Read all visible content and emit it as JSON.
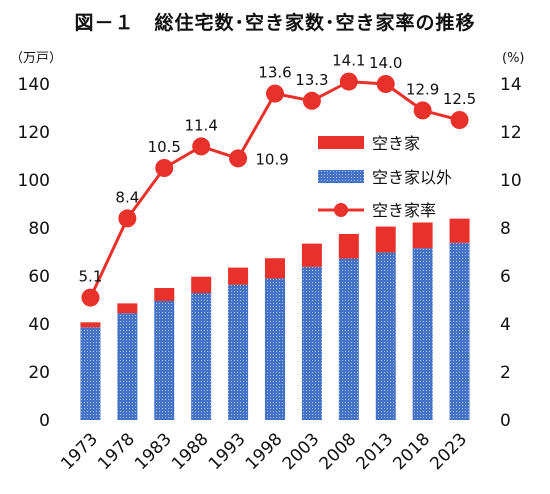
{
  "chart_data": {
    "type": "bar+line",
    "title": "図－１　総住宅数･空き家数･空き家率の推移",
    "left_unit": "（万戸）",
    "right_unit": "(%)",
    "categories": [
      "1973",
      "1978",
      "1983",
      "1988",
      "1993",
      "1998",
      "2003",
      "2008",
      "2013",
      "2018",
      "2023"
    ],
    "left_axis": {
      "min": 0,
      "max": 140,
      "ticks": [
        "0",
        "20",
        "40",
        "60",
        "80",
        "100",
        "120",
        "140"
      ]
    },
    "right_axis": {
      "min": 0,
      "max": 14,
      "ticks": [
        "0",
        "2",
        "4",
        "6",
        "8",
        "10",
        "12",
        "14"
      ]
    },
    "series": [
      {
        "name": "空き家以外",
        "kind": "bar-stack",
        "color": "#4472c4",
        "values": [
          38.6,
          44.5,
          49.6,
          52.9,
          56.4,
          59.0,
          63.8,
          67.3,
          69.8,
          71.6,
          73.8
        ]
      },
      {
        "name": "空き家",
        "kind": "bar-stack",
        "color": "#e8312a",
        "values": [
          2.1,
          4.1,
          5.4,
          6.8,
          7.1,
          8.4,
          9.7,
          10.2,
          10.8,
          10.7,
          10.1
        ]
      },
      {
        "name": "空き家率",
        "kind": "line",
        "axis": "right",
        "color": "#e8312a",
        "values": [
          5.1,
          8.4,
          10.5,
          11.4,
          10.9,
          13.6,
          13.3,
          14.1,
          14.0,
          12.9,
          12.5
        ],
        "labels": [
          "5.1",
          "8.4",
          "10.5",
          "11.4",
          "10.9",
          "13.6",
          "13.3",
          "14.1",
          "14.0",
          "12.9",
          "12.5"
        ]
      }
    ],
    "legend": {
      "placement": "upper-right inside plot",
      "entries": [
        "空き家",
        "空き家以外",
        "空き家率"
      ]
    },
    "grid": false
  }
}
